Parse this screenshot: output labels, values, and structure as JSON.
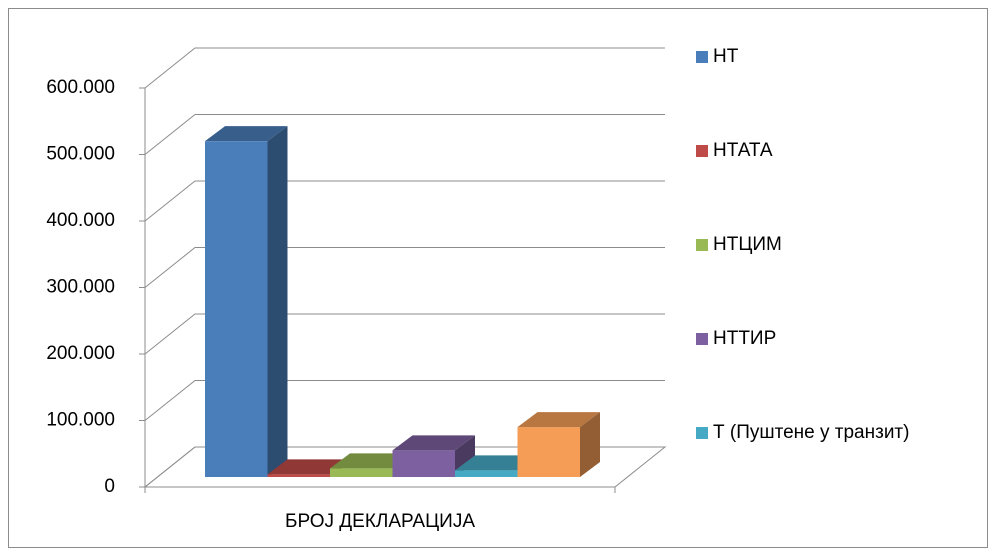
{
  "chart_data": {
    "type": "bar3d",
    "categories": [
      "БРОЈ ДЕКЛАРАЦИЈА"
    ],
    "series": [
      {
        "name": "НТ",
        "color": "#4a7ebb",
        "values": [
          505000
        ]
      },
      {
        "name": "НТАТА",
        "color": "#be4b48",
        "values": [
          4000
        ]
      },
      {
        "name": "НТЦИМ",
        "color": "#98b954",
        "values": [
          13000
        ]
      },
      {
        "name": "НТТИР",
        "color": "#7d60a0",
        "values": [
          40000
        ]
      },
      {
        "name": "Т (Пуштене у транзит)",
        "color": "#46aac5",
        "values": [
          10000
        ]
      },
      {
        "color": "#f59d56",
        "values": [
          75000
        ]
      }
    ],
    "ylim": [
      0,
      600000
    ],
    "yticks": [
      0,
      {
        "value": 100000,
        "label": "100.000"
      },
      {
        "value": 200000,
        "label": "200.000"
      },
      {
        "value": 300000,
        "label": "300.000"
      },
      {
        "value": 400000,
        "label": "400.000"
      },
      {
        "value": 500000,
        "label": "500.000"
      },
      {
        "value": 600000,
        "label": "600.000"
      }
    ],
    "grid": true,
    "legend": "right"
  }
}
